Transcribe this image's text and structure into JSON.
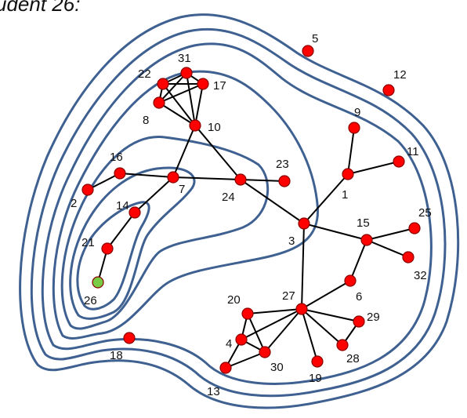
{
  "title": "udent 26:",
  "colors": {
    "contour": "#3f6191",
    "edge": "#000000",
    "node_default": "#ff0000",
    "node_highlight": "#77cc44"
  },
  "contour_levels": 7,
  "highlighted_node": "26",
  "nodes": [
    {
      "id": "1",
      "label": "1"
    },
    {
      "id": "2",
      "label": "2"
    },
    {
      "id": "3",
      "label": "3"
    },
    {
      "id": "4",
      "label": "4"
    },
    {
      "id": "5",
      "label": "5"
    },
    {
      "id": "6",
      "label": "6"
    },
    {
      "id": "7",
      "label": "7"
    },
    {
      "id": "8",
      "label": "8"
    },
    {
      "id": "9",
      "label": "9"
    },
    {
      "id": "10",
      "label": "10"
    },
    {
      "id": "11",
      "label": "11"
    },
    {
      "id": "12",
      "label": "12"
    },
    {
      "id": "13",
      "label": "13"
    },
    {
      "id": "14",
      "label": "14"
    },
    {
      "id": "15",
      "label": "15"
    },
    {
      "id": "16",
      "label": "16"
    },
    {
      "id": "17",
      "label": "17"
    },
    {
      "id": "18",
      "label": "18"
    },
    {
      "id": "19",
      "label": "19"
    },
    {
      "id": "20",
      "label": "20"
    },
    {
      "id": "21",
      "label": "21"
    },
    {
      "id": "22",
      "label": "22"
    },
    {
      "id": "23",
      "label": "23"
    },
    {
      "id": "24",
      "label": "24"
    },
    {
      "id": "25",
      "label": "25"
    },
    {
      "id": "26",
      "label": "26"
    },
    {
      "id": "27",
      "label": "27"
    },
    {
      "id": "28",
      "label": "28"
    },
    {
      "id": "29",
      "label": "29"
    },
    {
      "id": "30",
      "label": "30"
    },
    {
      "id": "31",
      "label": "31"
    },
    {
      "id": "32",
      "label": "32"
    }
  ],
  "edges": [
    [
      "31",
      "22"
    ],
    [
      "31",
      "17"
    ],
    [
      "31",
      "8"
    ],
    [
      "31",
      "10"
    ],
    [
      "22",
      "17"
    ],
    [
      "22",
      "8"
    ],
    [
      "22",
      "10"
    ],
    [
      "8",
      "17"
    ],
    [
      "8",
      "10"
    ],
    [
      "17",
      "10"
    ],
    [
      "10",
      "7"
    ],
    [
      "10",
      "24"
    ],
    [
      "16",
      "2"
    ],
    [
      "16",
      "7"
    ],
    [
      "7",
      "14"
    ],
    [
      "7",
      "24"
    ],
    [
      "14",
      "21"
    ],
    [
      "21",
      "26"
    ],
    [
      "24",
      "23"
    ],
    [
      "24",
      "3"
    ],
    [
      "3",
      "1"
    ],
    [
      "3",
      "15"
    ],
    [
      "3",
      "27"
    ],
    [
      "1",
      "9"
    ],
    [
      "1",
      "11"
    ],
    [
      "15",
      "25"
    ],
    [
      "15",
      "32"
    ],
    [
      "15",
      "6"
    ],
    [
      "6",
      "27"
    ],
    [
      "27",
      "20"
    ],
    [
      "27",
      "4"
    ],
    [
      "27",
      "30"
    ],
    [
      "27",
      "19"
    ],
    [
      "27",
      "28"
    ],
    [
      "27",
      "29"
    ],
    [
      "20",
      "4"
    ],
    [
      "20",
      "30"
    ],
    [
      "4",
      "30"
    ],
    [
      "4",
      "13"
    ],
    [
      "30",
      "13"
    ],
    [
      "28",
      "29"
    ]
  ]
}
